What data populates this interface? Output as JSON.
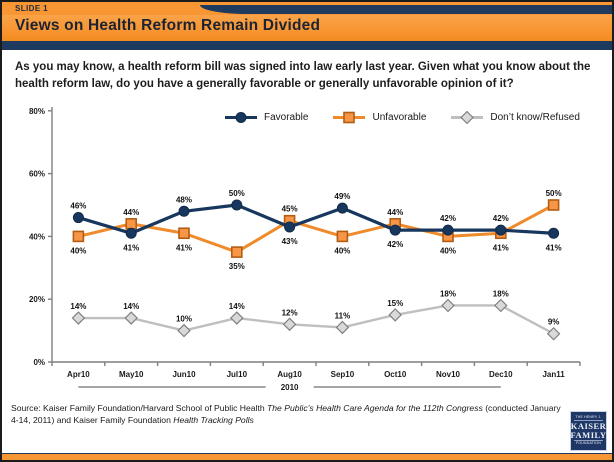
{
  "header": {
    "slide_label": "SLIDE 1",
    "title": "Views on Health Reform Remain Divided"
  },
  "question": "As you may know, a health reform bill was signed into law early last year. Given what you know about the health reform law, do you have a generally favorable or generally unfavorable opinion of it?",
  "chart_data": {
    "type": "line",
    "categories": [
      "Apr10",
      "May10",
      "Jun10",
      "Jul10",
      "Aug10",
      "Sep10",
      "Oct10",
      "Nov10",
      "Dec10",
      "Jan11"
    ],
    "series": [
      {
        "name": "Favorable",
        "marker": "circle",
        "color": "#17375E",
        "marker_fill": "#17375E",
        "marker_stroke": "#122a47",
        "stroke_width": 3.2,
        "values": [
          46,
          41,
          48,
          50,
          43,
          49,
          42,
          42,
          42,
          41
        ],
        "label_positions": [
          "above",
          "below",
          "above",
          "above",
          "below",
          "above",
          "below",
          "above",
          "above",
          "below"
        ]
      },
      {
        "name": "Unfavorable",
        "marker": "square",
        "color": "#EF8B2A",
        "marker_fill": "#F79646",
        "marker_stroke": "#B35D12",
        "stroke_width": 3,
        "values": [
          40,
          44,
          41,
          35,
          45,
          40,
          44,
          40,
          41,
          50
        ],
        "label_positions": [
          "below",
          "above",
          "below",
          "below",
          "above",
          "below",
          "above",
          "below",
          "below",
          "above"
        ]
      },
      {
        "name": "Don’t know/Refused",
        "marker": "diamond",
        "color": "#BFBFBF",
        "marker_fill": "#D9D9D9",
        "marker_stroke": "#808080",
        "stroke_width": 2.4,
        "values": [
          14,
          14,
          10,
          14,
          12,
          11,
          15,
          18,
          18,
          9
        ],
        "label_positions": [
          "above",
          "above",
          "above",
          "above",
          "above",
          "above",
          "above",
          "above",
          "above",
          "above"
        ]
      }
    ],
    "ylim": [
      0,
      80
    ],
    "yticks": [
      "0%",
      "20%",
      "40%",
      "60%",
      "80%"
    ],
    "x_group_label": "2010",
    "legend_position": "top",
    "grid": false
  },
  "source": {
    "parts": [
      {
        "text": "Source: Kaiser Family Foundation/Harvard School of Public Health ",
        "italic": false
      },
      {
        "text": "The Public’s Health Care Agenda for the 112th Congress",
        "italic": true
      },
      {
        "text": " (conducted January 4-14, 2011) and Kaiser Family Foundation ",
        "italic": false
      },
      {
        "text": "Health Tracking Polls",
        "italic": true
      }
    ]
  },
  "logo": {
    "lines": [
      "THE HENRY J.",
      "KAISER",
      "FAMILY",
      "FOUNDATION"
    ]
  },
  "colors": {
    "brand_orange": "#F79633",
    "brand_navy": "#1F3A5F",
    "favorable": "#17375E",
    "unfavorable": "#EF8B2A",
    "dont_know": "#BFBFBF"
  }
}
